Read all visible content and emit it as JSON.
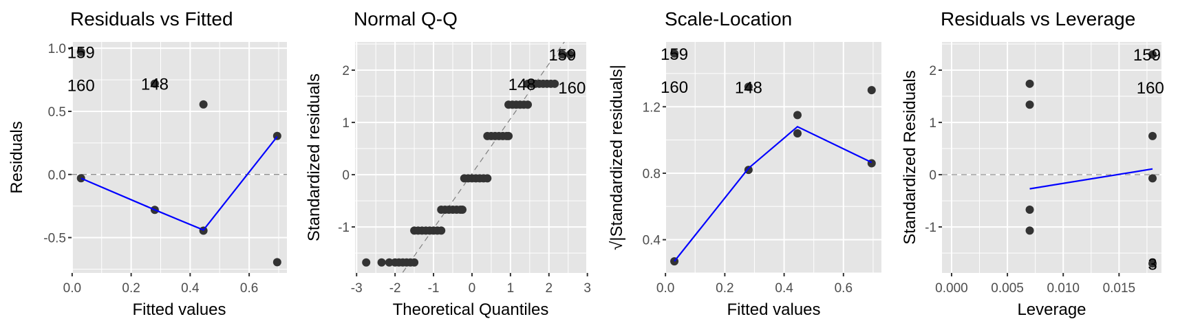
{
  "chart_data": [
    {
      "type": "scatter",
      "title": "Residuals vs Fitted",
      "xlabel": "Fitted values",
      "ylabel": "Residuals",
      "xlim": [
        -0.002,
        0.728
      ],
      "ylim": [
        -0.78,
        1.05
      ],
      "xticks": [
        0.0,
        0.2,
        0.4,
        0.6
      ],
      "xtick_labels": [
        "0.0",
        "0.2",
        "0.4",
        "0.6"
      ],
      "yticks": [
        -0.5,
        0.0,
        0.5,
        1.0
      ],
      "ytick_labels": [
        "-0.5",
        "0.0",
        "0.5",
        "1.0"
      ],
      "grid": true,
      "hline": 0,
      "points": [
        [
          0.03,
          -0.03
        ],
        [
          0.28,
          -0.28
        ],
        [
          0.445,
          -0.445
        ],
        [
          0.695,
          0.305
        ],
        [
          0.695,
          -0.695
        ],
        [
          0.445,
          0.555
        ],
        [
          0.28,
          0.72
        ],
        [
          0.03,
          0.97
        ]
      ],
      "smooth": [
        [
          0.03,
          -0.03
        ],
        [
          0.28,
          -0.28
        ],
        [
          0.445,
          -0.44
        ],
        [
          0.695,
          0.3
        ]
      ],
      "smooth_color": "#0000FF",
      "labels": [
        {
          "text": "159",
          "x": 0.03,
          "y": 0.97
        },
        {
          "text": "160",
          "x": 0.03,
          "y": 0.97
        },
        {
          "text": "148",
          "x": 0.28,
          "y": 0.72
        }
      ]
    },
    {
      "type": "scatter",
      "title": "Normal Q-Q",
      "xlabel": "Theoretical Quantiles",
      "ylabel": "Standardized residuals",
      "xlim": [
        -3.04,
        2.97
      ],
      "ylim": [
        -1.88,
        2.54
      ],
      "xticks": [
        -3,
        -2,
        -1,
        0,
        1,
        2,
        3
      ],
      "xtick_labels": [
        "-3",
        "-2",
        "-1",
        "0",
        "1",
        "2",
        "3"
      ],
      "yticks": [
        -1,
        0,
        1,
        2
      ],
      "ytick_labels": [
        "-1",
        "0",
        "1",
        "2"
      ],
      "grid": true,
      "refline": {
        "slope": 1.05,
        "intercept": 0.02
      },
      "points": [
        [
          -2.75,
          -1.68
        ],
        [
          -2.35,
          -1.68
        ],
        [
          -2.15,
          -1.68
        ],
        [
          -2.0,
          -1.68
        ],
        [
          -1.9,
          -1.68
        ],
        [
          -1.8,
          -1.68
        ],
        [
          -1.7,
          -1.68
        ],
        [
          -1.6,
          -1.68
        ],
        [
          -1.5,
          -1.68
        ],
        [
          -1.5,
          -1.07
        ],
        [
          -1.4,
          -1.07
        ],
        [
          -1.3,
          -1.07
        ],
        [
          -1.2,
          -1.07
        ],
        [
          -1.1,
          -1.07
        ],
        [
          -1.0,
          -1.07
        ],
        [
          -0.9,
          -1.07
        ],
        [
          -0.8,
          -1.07
        ],
        [
          -0.8,
          -0.67
        ],
        [
          -0.7,
          -0.67
        ],
        [
          -0.6,
          -0.67
        ],
        [
          -0.5,
          -0.67
        ],
        [
          -0.4,
          -0.67
        ],
        [
          -0.3,
          -0.67
        ],
        [
          -0.25,
          -0.67
        ],
        [
          -0.2,
          -0.07
        ],
        [
          -0.1,
          -0.07
        ],
        [
          0.0,
          -0.07
        ],
        [
          0.1,
          -0.07
        ],
        [
          0.2,
          -0.07
        ],
        [
          0.3,
          -0.07
        ],
        [
          0.4,
          -0.07
        ],
        [
          0.4,
          0.74
        ],
        [
          0.5,
          0.74
        ],
        [
          0.6,
          0.74
        ],
        [
          0.7,
          0.74
        ],
        [
          0.8,
          0.74
        ],
        [
          0.9,
          0.74
        ],
        [
          0.95,
          0.74
        ],
        [
          0.95,
          1.34
        ],
        [
          1.05,
          1.34
        ],
        [
          1.15,
          1.34
        ],
        [
          1.25,
          1.34
        ],
        [
          1.35,
          1.34
        ],
        [
          1.45,
          1.34
        ],
        [
          1.45,
          1.74
        ],
        [
          1.55,
          1.74
        ],
        [
          1.65,
          1.74
        ],
        [
          1.75,
          1.74
        ],
        [
          1.85,
          1.74
        ],
        [
          1.95,
          1.74
        ],
        [
          2.05,
          1.74
        ],
        [
          2.15,
          1.74
        ],
        [
          2.35,
          2.3
        ],
        [
          2.55,
          2.3
        ]
      ],
      "labels": [
        {
          "text": "148",
          "x": 1.3,
          "y": 1.74
        },
        {
          "text": "159",
          "x": 2.35,
          "y": 2.3
        },
        {
          "text": "160",
          "x": 2.6,
          "y": 2.3
        }
      ]
    },
    {
      "type": "scatter",
      "title": "Scale-Location",
      "xlabel": "Fitted values",
      "ylabel": "√|Standardized residuals|",
      "xlim": [
        0.002,
        0.728
      ],
      "ylim": [
        0.2,
        1.59
      ],
      "xticks": [
        0.0,
        0.2,
        0.4,
        0.6
      ],
      "xtick_labels": [
        "0.0",
        "0.2",
        "0.4",
        "0.6"
      ],
      "yticks": [
        0.4,
        0.8,
        1.2
      ],
      "ytick_labels": [
        "0.4",
        "0.8",
        "1.2"
      ],
      "grid": true,
      "points": [
        [
          0.03,
          0.27
        ],
        [
          0.28,
          0.82
        ],
        [
          0.445,
          1.04
        ],
        [
          0.445,
          1.15
        ],
        [
          0.695,
          0.86
        ],
        [
          0.695,
          1.3
        ],
        [
          0.28,
          1.32
        ],
        [
          0.03,
          1.52
        ]
      ],
      "smooth": [
        [
          0.03,
          0.27
        ],
        [
          0.28,
          0.83
        ],
        [
          0.445,
          1.08
        ],
        [
          0.695,
          0.865
        ]
      ],
      "smooth_color": "#0000FF",
      "labels": [
        {
          "text": "159",
          "x": 0.03,
          "y": 1.52
        },
        {
          "text": "160",
          "x": 0.03,
          "y": 1.52
        },
        {
          "text": "148",
          "x": 0.28,
          "y": 1.32
        }
      ]
    },
    {
      "type": "scatter",
      "title": "Residuals vs Leverage",
      "xlabel": "Leverage",
      "ylabel": "Standardized Residuals",
      "xlim": [
        -0.00086,
        0.0188
      ],
      "ylim": [
        -1.88,
        2.54
      ],
      "xticks": [
        0.0,
        0.005,
        0.01,
        0.015
      ],
      "xtick_labels": [
        "0.000",
        "0.005",
        "0.010",
        "0.015"
      ],
      "yticks": [
        -1,
        0,
        1,
        2
      ],
      "ytick_labels": [
        "-1",
        "0",
        "1",
        "2"
      ],
      "grid": true,
      "hline": 0,
      "points": [
        [
          0.007,
          1.74
        ],
        [
          0.007,
          1.34
        ],
        [
          0.007,
          -0.67
        ],
        [
          0.007,
          -1.07
        ],
        [
          0.018,
          0.74
        ],
        [
          0.018,
          -0.07
        ],
        [
          0.018,
          2.3
        ],
        [
          0.018,
          -1.7
        ]
      ],
      "smooth": [
        [
          0.007,
          -0.27
        ],
        [
          0.018,
          0.11
        ]
      ],
      "smooth_color": "#0000FF",
      "labels": [
        {
          "text": "159",
          "x": 0.0175,
          "y": 2.3
        },
        {
          "text": "160",
          "x": 0.0178,
          "y": 2.3
        },
        {
          "text": "3",
          "x": 0.018,
          "y": -1.7
        }
      ]
    }
  ],
  "colors": {
    "panel_bg": "#E5E5E5",
    "grid": "#FFFFFF",
    "point": "#333333",
    "smooth": "#0000FF",
    "refline": "#7F7F7F"
  }
}
